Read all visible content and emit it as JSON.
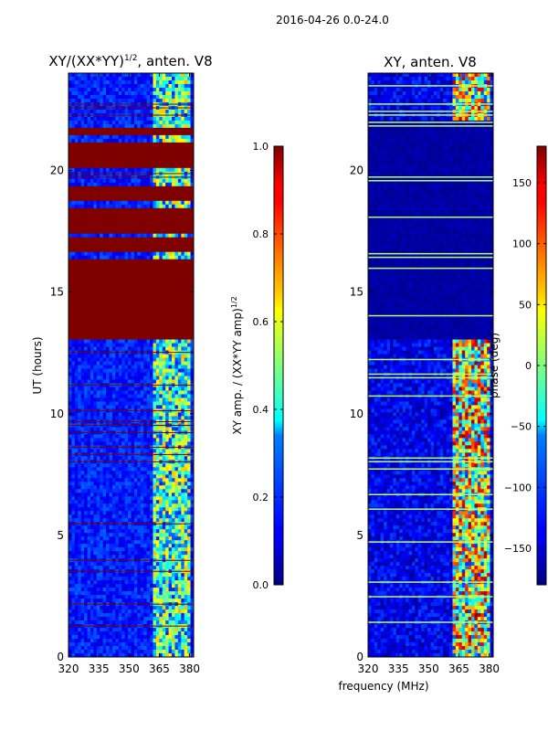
{
  "figure": {
    "suptitle": "2016-04-26 0.0-24.0",
    "shared_xlabel": "frequency (MHz)"
  },
  "chart_data": [
    {
      "type": "heatmap",
      "title_main": "XY/(XX*YY)",
      "title_sup": "1/2",
      "title_tail": ", anten. V8",
      "ylabel": "UT (hours)",
      "xlim": [
        320,
        382
      ],
      "ylim": [
        0,
        24
      ],
      "x_ticks": [
        320,
        335,
        350,
        365,
        380
      ],
      "y_ticks": [
        0,
        5,
        10,
        15,
        20
      ],
      "colorbar": {
        "label_main": "XY amp. / (XX*YY amp)",
        "label_sup": "1/2",
        "range": [
          0.0,
          1.0
        ],
        "ticks": [
          "0.0",
          "0.2",
          "0.4",
          "0.6",
          "0.8",
          "1.0"
        ],
        "tick_values": [
          0.0,
          0.2,
          0.4,
          0.6,
          0.8,
          1.0
        ]
      },
      "saturated_bands_hours": [
        [
          13.0,
          16.4
        ],
        [
          16.6,
          17.2
        ],
        [
          17.4,
          18.5
        ],
        [
          18.8,
          19.4
        ],
        [
          20.1,
          21.2
        ],
        [
          21.5,
          21.7
        ]
      ],
      "rfi_channel_range_mhz": [
        362,
        380
      ]
    },
    {
      "type": "heatmap",
      "title": "XY, anten. V8",
      "xlim": [
        320,
        382
      ],
      "ylim": [
        0,
        24
      ],
      "x_ticks": [
        320,
        335,
        350,
        365,
        380
      ],
      "y_ticks": [
        0,
        5,
        10,
        15,
        20
      ],
      "colorbar": {
        "label": "phase (deg)",
        "range": [
          -180,
          180
        ],
        "ticks": [
          "−150",
          "−100",
          "−50",
          "0",
          "50",
          "100",
          "150"
        ],
        "tick_values": [
          -150,
          -100,
          -50,
          0,
          50,
          100,
          150
        ]
      },
      "rfi_channel_range_mhz": [
        362,
        380
      ]
    }
  ]
}
